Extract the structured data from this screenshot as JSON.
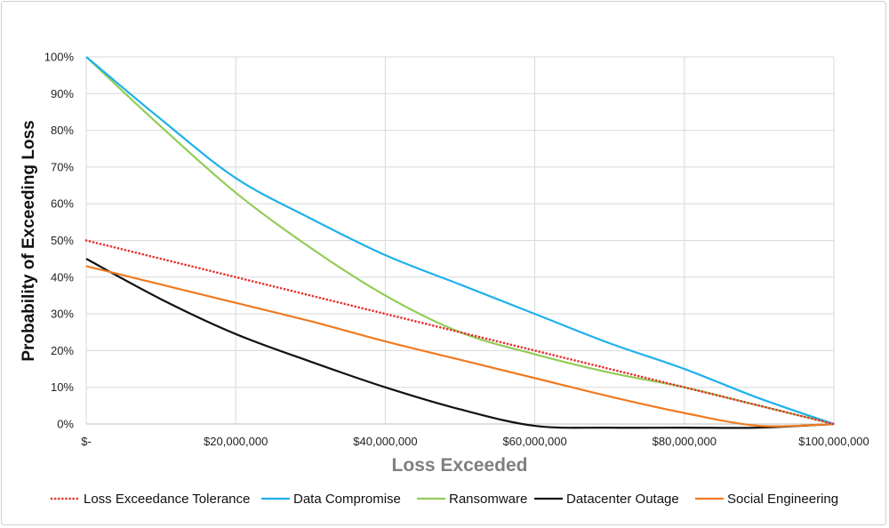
{
  "chart_data": {
    "type": "line",
    "title": "",
    "xlabel": "Loss Exceeded",
    "ylabel": "Probability of Exceeding Loss",
    "xlim": [
      0,
      100000000
    ],
    "ylim": [
      0,
      1
    ],
    "x_ticks": [
      0,
      20000000,
      40000000,
      60000000,
      80000000,
      100000000
    ],
    "x_tick_labels": [
      "$-",
      "$20,000,000",
      "$40,000,000",
      "$60,000,000",
      "$80,000,000",
      "$100,000,000"
    ],
    "y_ticks": [
      0,
      0.1,
      0.2,
      0.3,
      0.4,
      0.5,
      0.6,
      0.7,
      0.8,
      0.9,
      1.0
    ],
    "y_tick_labels": [
      "0%",
      "10%",
      "20%",
      "30%",
      "40%",
      "50%",
      "60%",
      "70%",
      "80%",
      "90%",
      "100%"
    ],
    "grid": "vertical and horizontal",
    "legend_position": "bottom",
    "series": [
      {
        "name": "Loss Exceedance Tolerance",
        "color": "#e8312f",
        "style": "dotted",
        "x": [
          0,
          100000000
        ],
        "y": [
          0.5,
          0.0
        ]
      },
      {
        "name": "Data Compromise",
        "color": "#1fb1ec",
        "style": "solid",
        "x": [
          0,
          10000000,
          20000000,
          30000000,
          40000000,
          50000000,
          60000000,
          70000000,
          80000000,
          90000000,
          100000000
        ],
        "y": [
          1.0,
          0.83,
          0.67,
          0.56,
          0.46,
          0.38,
          0.3,
          0.22,
          0.15,
          0.07,
          0.0
        ]
      },
      {
        "name": "Ransomware",
        "color": "#92cc57",
        "style": "solid",
        "x": [
          0,
          10000000,
          20000000,
          30000000,
          40000000,
          50000000,
          60000000,
          70000000,
          80000000,
          90000000,
          100000000
        ],
        "y": [
          1.0,
          0.81,
          0.63,
          0.48,
          0.35,
          0.25,
          0.19,
          0.14,
          0.1,
          0.05,
          0.0
        ]
      },
      {
        "name": "Datacenter Outage",
        "color": "#111111",
        "style": "solid",
        "x": [
          0,
          10000000,
          20000000,
          30000000,
          40000000,
          50000000,
          60000000,
          70000000,
          80000000,
          90000000,
          100000000
        ],
        "y": [
          0.45,
          0.34,
          0.245,
          0.17,
          0.1,
          0.04,
          -0.005,
          -0.01,
          -0.01,
          -0.01,
          0.0
        ]
      },
      {
        "name": "Social Engineering",
        "color": "#f07b21",
        "style": "solid",
        "x": [
          0,
          10000000,
          20000000,
          30000000,
          40000000,
          50000000,
          60000000,
          70000000,
          80000000,
          90000000,
          100000000
        ],
        "y": [
          0.43,
          0.38,
          0.33,
          0.28,
          0.225,
          0.175,
          0.125,
          0.075,
          0.03,
          -0.005,
          0.0
        ]
      }
    ]
  }
}
